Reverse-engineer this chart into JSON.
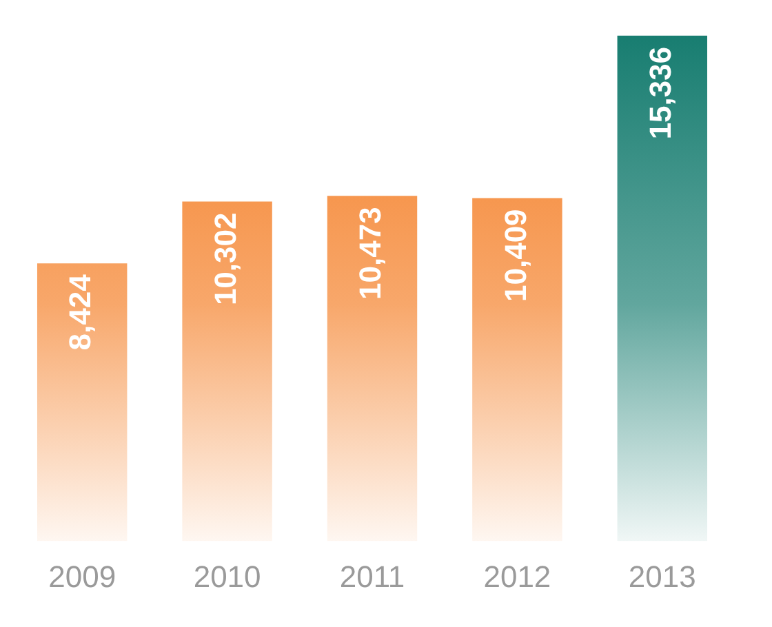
{
  "chart_data": {
    "type": "bar",
    "categories": [
      "2009",
      "2010",
      "2011",
      "2012",
      "2013"
    ],
    "values": [
      8424,
      10302,
      10473,
      10409,
      15336
    ],
    "colors": [
      "#f47b20",
      "#f47b20",
      "#f47b20",
      "#f47b20",
      "#127a6d"
    ],
    "value_labels": [
      "8,424",
      "10,302",
      "10,473",
      "10,409",
      "15,336"
    ],
    "tick_labels": "x",
    "grid": false,
    "legend": false
  }
}
